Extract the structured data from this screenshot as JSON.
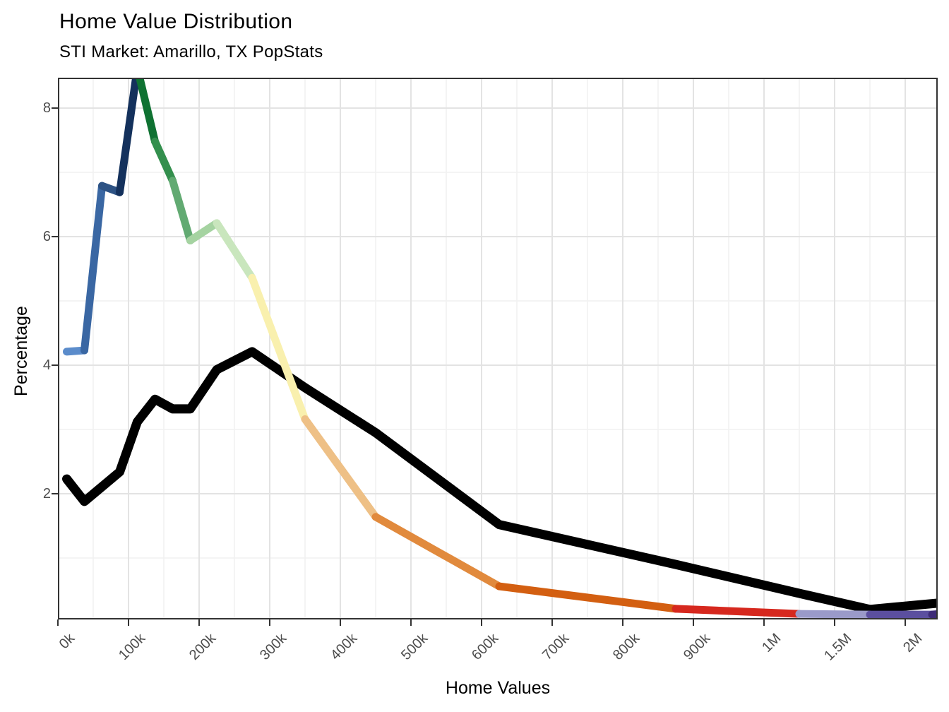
{
  "header": {
    "title": "Home Value Distribution",
    "subtitle": "STI Market: Amarillo, TX PopStats"
  },
  "chart_data": {
    "type": "line",
    "title": "Home Value Distribution",
    "subtitle": "STI Market: Amarillo, TX PopStats",
    "xlabel": "Home Values",
    "ylabel": "Percentage",
    "x_unit": "home value in thousands of dollars (bracket midpoints)",
    "ylim": [
      0,
      8.45
    ],
    "grid": "on",
    "legend": "none",
    "x_ticks": [
      {
        "label": "0k",
        "value": 0
      },
      {
        "label": "100k",
        "value": 100
      },
      {
        "label": "200k",
        "value": 200
      },
      {
        "label": "300k",
        "value": 300
      },
      {
        "label": "400k",
        "value": 400
      },
      {
        "label": "500k",
        "value": 500
      },
      {
        "label": "600k",
        "value": 600
      },
      {
        "label": "700k",
        "value": 700
      },
      {
        "label": "800k",
        "value": 800
      },
      {
        "label": "900k",
        "value": 900
      },
      {
        "label": "1M",
        "value": 1000
      },
      {
        "label": "1.5M",
        "value": 1500
      },
      {
        "label": "2M",
        "value": 2000
      }
    ],
    "y_ticks": [
      {
        "label": "2",
        "value": 2
      },
      {
        "label": "4",
        "value": 4
      },
      {
        "label": "6",
        "value": 6
      },
      {
        "label": "8",
        "value": 8
      }
    ],
    "axis_note": "x axis linear 0-1M, compressed 5x for 1M-2M+",
    "series": [
      {
        "name": "benchmark-distribution",
        "color": "#000000",
        "stroke_width": 13,
        "x": [
          12.5,
          37.5,
          62.5,
          87.5,
          112.5,
          137.5,
          162.5,
          187.5,
          225,
          275,
          350,
          450,
          625,
          875,
          1250,
          1750,
          2240
        ],
        "values": [
          2.23,
          1.88,
          2.11,
          2.34,
          3.12,
          3.47,
          3.32,
          3.32,
          3.93,
          4.21,
          3.65,
          2.95,
          1.52,
          0.9,
          0.45,
          0.2,
          0.3
        ]
      },
      {
        "name": "market-distribution-gradient",
        "stroke_width": 11,
        "x": [
          12.5,
          37.5,
          62.5,
          87.5,
          112.5,
          137.5,
          162.5,
          187.5,
          225,
          275,
          350,
          450,
          625,
          875,
          1250,
          1750,
          2190,
          2240
        ],
        "values": [
          4.21,
          4.23,
          6.79,
          6.69,
          8.62,
          7.48,
          6.87,
          5.94,
          6.21,
          5.36,
          3.16,
          1.64,
          0.56,
          0.21,
          0.13,
          0.12,
          0.12,
          0.13
        ],
        "segment_colors": [
          "#5b8ccb",
          "#3a67a3",
          "#2d5284",
          "#14315c",
          "#0f7232",
          "#338f4d",
          "#62aa72",
          "#a5d3a1",
          "#c9e6bd",
          "#f9f0ae",
          "#eec086",
          "#e18a3d",
          "#d35f11",
          "#d6281e",
          "#9a9ac9",
          "#5b4f9f",
          "#3e2c78"
        ]
      }
    ]
  },
  "style_colors": {
    "panel_border": "#333333",
    "tick_mark": "#333333",
    "tick_label": "#4d4d4d",
    "grid_major": "#e3e3e3",
    "grid_minor": "#f1f1f1",
    "background": "#ffffff"
  }
}
